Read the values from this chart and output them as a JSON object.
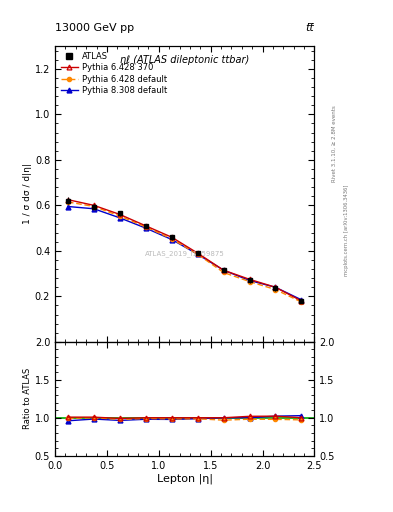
{
  "title_top": "13000 GeV pp",
  "title_top_right": "tt̅",
  "plot_title": "ηℓ (ATLAS dileptonic ttbar)",
  "watermark": "ATLAS_2019_I1759875",
  "right_label_top": "Rivet 3.1.10, ≥ 2.8M events",
  "right_label_bot": "mcplots.cern.ch [arXiv:1306.3436]",
  "xlabel": "Lepton |η|",
  "ylabel": "1 / σ dσ / d|η|",
  "ylabel_ratio": "Ratio to ATLAS",
  "xlim": [
    0,
    2.5
  ],
  "ylim_main": [
    0.0,
    1.3
  ],
  "ylim_ratio": [
    0.5,
    2.0
  ],
  "x_data": [
    0.125,
    0.375,
    0.625,
    0.875,
    1.125,
    1.375,
    1.625,
    1.875,
    2.125,
    2.375
  ],
  "atlas_y": [
    0.62,
    0.595,
    0.565,
    0.51,
    0.46,
    0.39,
    0.315,
    0.27,
    0.235,
    0.18
  ],
  "atlas_yerr": [
    0.015,
    0.012,
    0.011,
    0.01,
    0.01,
    0.01,
    0.01,
    0.01,
    0.01,
    0.01
  ],
  "pythia6_370_y": [
    0.625,
    0.6,
    0.56,
    0.51,
    0.46,
    0.39,
    0.315,
    0.275,
    0.24,
    0.18
  ],
  "pythia6_default_y": [
    0.615,
    0.595,
    0.553,
    0.505,
    0.453,
    0.385,
    0.305,
    0.265,
    0.23,
    0.175
  ],
  "pythia8_default_y": [
    0.595,
    0.585,
    0.545,
    0.5,
    0.45,
    0.385,
    0.315,
    0.27,
    0.24,
    0.185
  ],
  "ratio_pythia6_370": [
    1.008,
    1.008,
    0.991,
    1.0,
    1.0,
    1.0,
    1.0,
    1.019,
    1.021,
    1.0
  ],
  "ratio_pythia6_default": [
    0.992,
    1.0,
    0.979,
    0.99,
    0.985,
    0.987,
    0.968,
    0.981,
    0.979,
    0.972
  ],
  "ratio_pythia8_default": [
    0.96,
    0.983,
    0.965,
    0.98,
    0.978,
    0.987,
    1.0,
    1.0,
    1.021,
    1.028
  ],
  "color_atlas": "#000000",
  "color_pythia6_370": "#cc0000",
  "color_pythia6_default": "#ff8800",
  "color_pythia8_default": "#0000cc",
  "color_green_line": "#00aa00",
  "yticks_main": [
    0.2,
    0.4,
    0.6,
    0.8,
    1.0,
    1.2
  ],
  "yticks_ratio": [
    0.5,
    1.0,
    1.5,
    2.0
  ],
  "xticks": [
    0.0,
    0.5,
    1.0,
    1.5,
    2.0,
    2.5
  ]
}
